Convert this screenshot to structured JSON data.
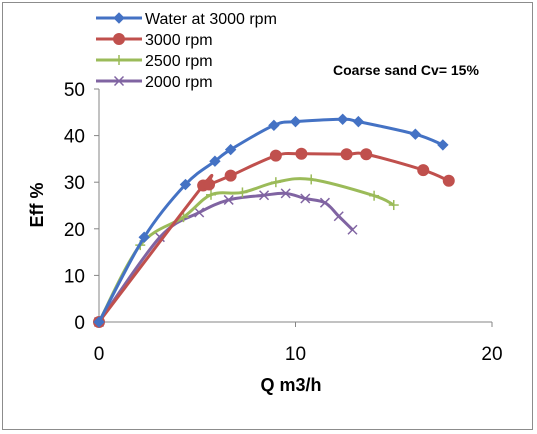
{
  "chart_data": {
    "type": "line",
    "annotation": "Coarse sand Cv= 15%",
    "xlabel": "Q m3/h",
    "ylabel": "Eff %",
    "xlim": [
      0,
      20
    ],
    "ylim": [
      0,
      50
    ],
    "xticks": [
      "0",
      "10",
      "20"
    ],
    "yticks": [
      "0",
      "10",
      "20",
      "30",
      "40",
      "50"
    ],
    "legend_position": "top-left",
    "grid": false,
    "series": [
      {
        "name": "Water at 3000 rpm",
        "color": "#4472C4",
        "marker": "diamond",
        "x": [
          0,
          2.3,
          4.4,
          5.9,
          6.7,
          8.9,
          10.0,
          12.4,
          13.2,
          16.1,
          17.5
        ],
        "y": [
          0,
          18.2,
          29.5,
          34.5,
          37.0,
          42.2,
          43.0,
          43.5,
          43.0,
          40.3,
          38.0
        ]
      },
      {
        "name": "3000 rpm",
        "color": "#C0504D",
        "marker": "circle",
        "x": [
          0,
          5.3,
          5.6,
          6.7,
          9.0,
          10.3,
          12.6,
          13.6,
          16.5,
          17.8
        ],
        "y": [
          0,
          29.3,
          29.5,
          31.4,
          35.7,
          36.1,
          36.0,
          36.0,
          32.6,
          30.3
        ]
      },
      {
        "name": "2500 rpm",
        "color": "#9BBB59",
        "marker": "plus",
        "x": [
          0,
          2.1,
          4.3,
          5.7,
          7.3,
          9.0,
          10.8,
          14.0,
          15.0
        ],
        "y": [
          0,
          16.5,
          22.5,
          27.3,
          27.8,
          30.0,
          30.6,
          27.1,
          25.1
        ]
      },
      {
        "name": "2000 rpm",
        "color": "#8064A2",
        "marker": "x",
        "x": [
          0,
          3.1,
          5.1,
          6.6,
          8.4,
          9.5,
          10.5,
          11.5,
          12.2,
          12.9
        ],
        "y": [
          0,
          18.2,
          23.5,
          26.2,
          27.2,
          27.6,
          26.5,
          25.6,
          22.7,
          19.8
        ]
      }
    ]
  }
}
